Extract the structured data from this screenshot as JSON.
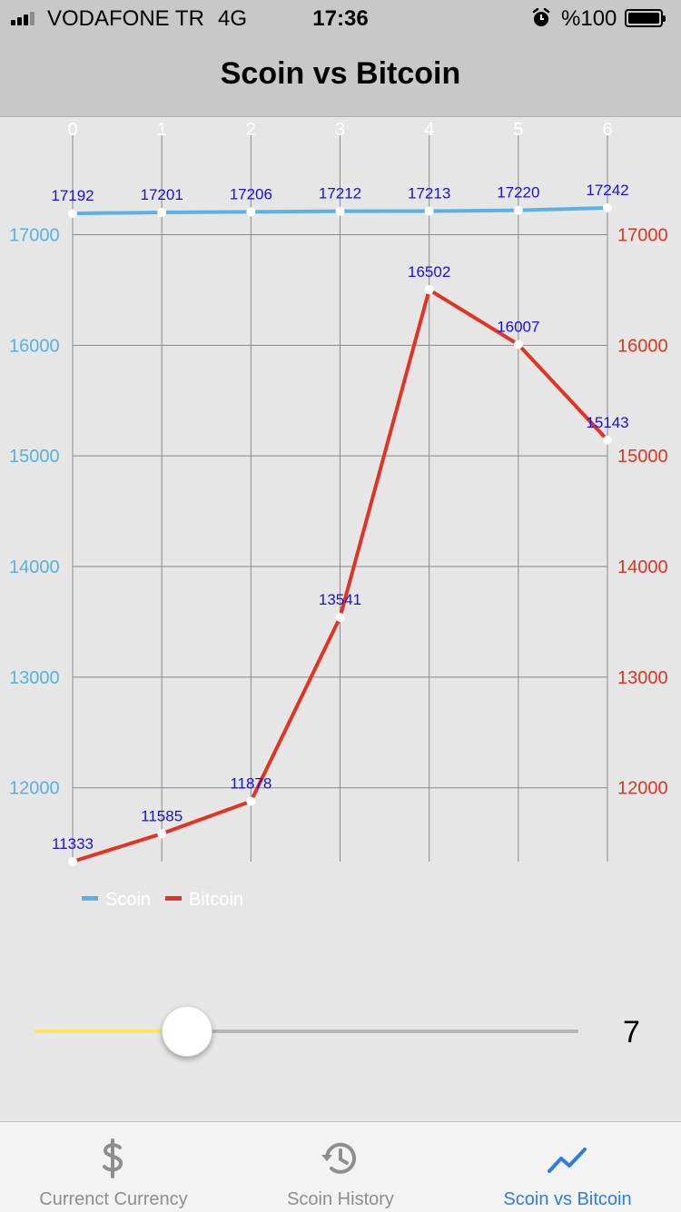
{
  "status_bar": {
    "carrier": "VODAFONE TR",
    "network": "4G",
    "time": "17:36",
    "battery": "%100",
    "alarm_icon": "alarm-clock-icon"
  },
  "nav": {
    "title": "Scoin vs Bitcoin"
  },
  "chart_data": {
    "type": "line",
    "title": "",
    "x": [
      0,
      1,
      2,
      3,
      4,
      5,
      6
    ],
    "x_tick_labels": [
      "0",
      "1",
      "2",
      "3",
      "4",
      "5",
      "6"
    ],
    "x_axis_position": "top",
    "left_axis": {
      "ticks": [
        "12000",
        "13000",
        "14000",
        "15000",
        "16000",
        "17000"
      ],
      "color": "#5ab2e0"
    },
    "right_axis": {
      "ticks": [
        "12000",
        "13000",
        "14000",
        "15000",
        "16000",
        "17000"
      ],
      "color": "#e03424"
    },
    "ylim": [
      11333,
      17242
    ],
    "grid": true,
    "series": [
      {
        "name": "Scoin",
        "color": "#5ab2e0",
        "values": [
          17192,
          17201,
          17206,
          17212,
          17213,
          17220,
          17242
        ]
      },
      {
        "name": "Bitcoin",
        "color": "#e03424",
        "values": [
          11333,
          11585,
          11878,
          13541,
          16502,
          16007,
          15143
        ]
      }
    ],
    "data_label_color": "#1a10d6",
    "legend": "bottom-left"
  },
  "slider": {
    "value_label": "7",
    "fraction": 0.28,
    "min_track_color": "#ffe55c",
    "max_track_color": "#b5b5b5"
  },
  "tabs": [
    {
      "label": "Currenct Currency",
      "icon": "dollar-icon",
      "active": false
    },
    {
      "label": "Scoin History",
      "icon": "history-icon",
      "active": false
    },
    {
      "label": "Scoin vs Bitcoin",
      "icon": "trend-icon",
      "active": true
    }
  ]
}
